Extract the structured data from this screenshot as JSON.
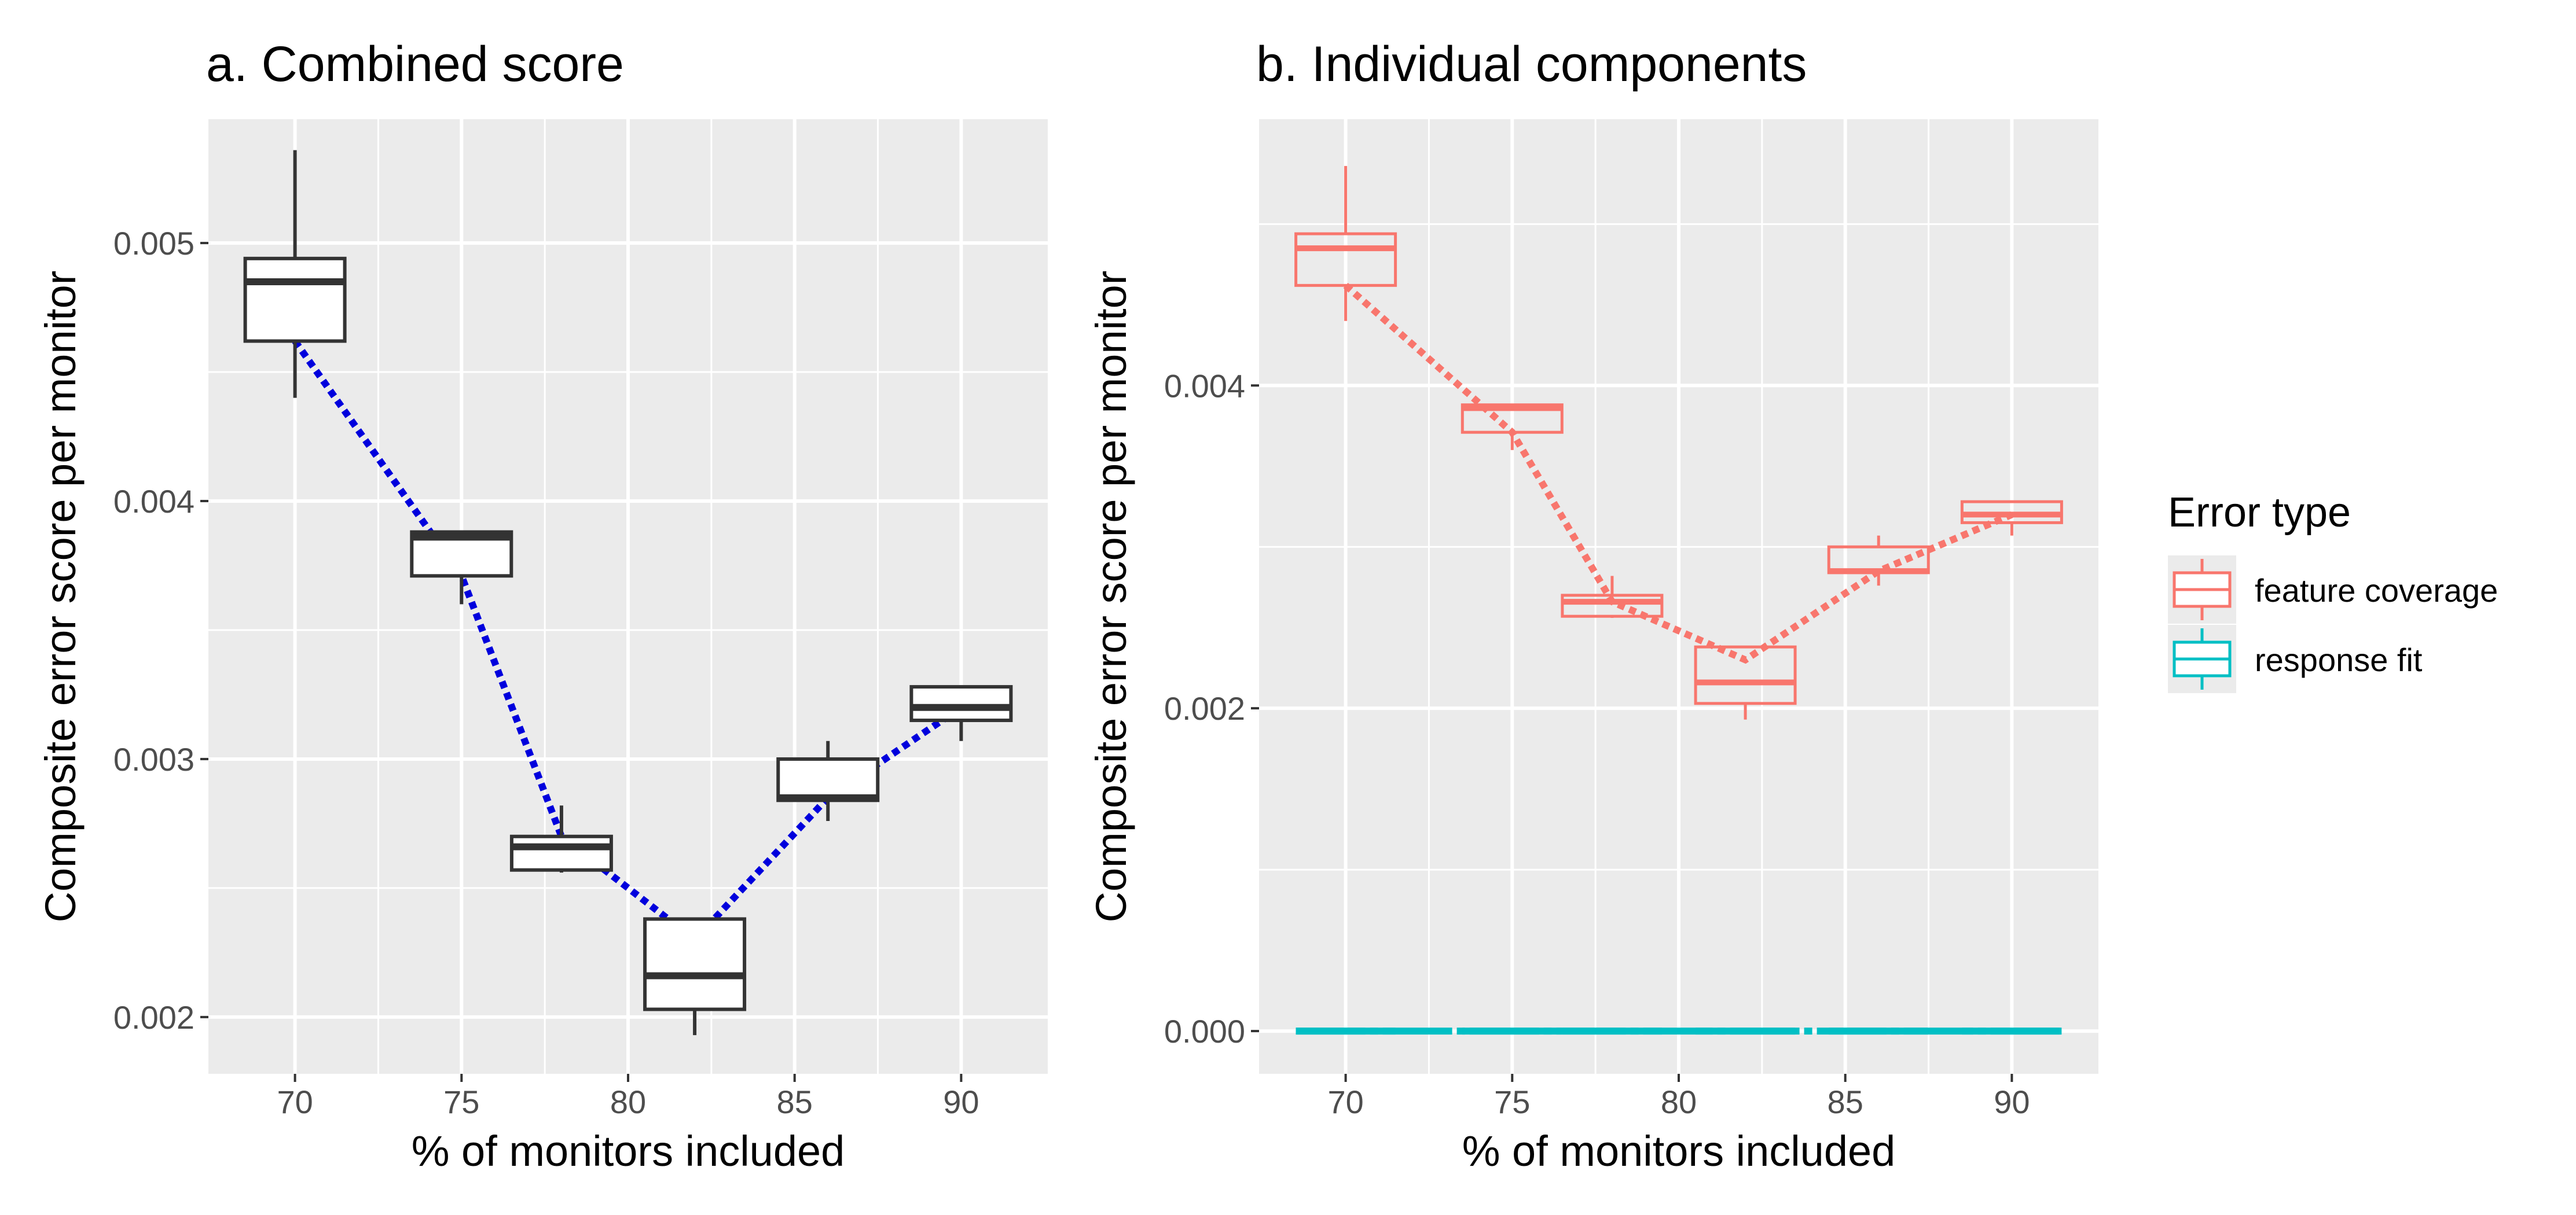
{
  "chart_data": [
    {
      "type": "box",
      "title": "a. Combined score",
      "xlabel": "% of monitors included",
      "ylabel": "Composite error score per monitor",
      "xlim": [
        67.4,
        92.6
      ],
      "ylim": [
        0.00178,
        0.00548
      ],
      "x_ticks": [
        70,
        75,
        80,
        85,
        90
      ],
      "y_ticks": [
        0.002,
        0.003,
        0.004,
        0.005
      ],
      "y_tick_labels": [
        "0.002",
        "0.003",
        "0.004",
        "0.005"
      ],
      "grid": true,
      "box_color": "#333333",
      "box_fill": "#ffffff",
      "trend_color": "#0000dd",
      "boxes": [
        {
          "x": 70,
          "whisker_low": 0.0044,
          "q1": 0.00462,
          "median": 0.00485,
          "q3": 0.00494,
          "whisker_high": 0.00536
        },
        {
          "x": 75,
          "whisker_low": 0.0036,
          "q1": 0.00371,
          "median": 0.00386,
          "q3": 0.00388,
          "whisker_high": 0.00388
        },
        {
          "x": 78,
          "whisker_low": 0.00256,
          "q1": 0.00257,
          "median": 0.00266,
          "q3": 0.0027,
          "whisker_high": 0.00282
        },
        {
          "x": 82,
          "whisker_low": 0.00193,
          "q1": 0.00203,
          "median": 0.00216,
          "q3": 0.00238,
          "whisker_high": 0.00238
        },
        {
          "x": 86,
          "whisker_low": 0.00276,
          "q1": 0.00284,
          "median": 0.00285,
          "q3": 0.003,
          "whisker_high": 0.00307
        },
        {
          "x": 90,
          "whisker_low": 0.00307,
          "q1": 0.00315,
          "median": 0.0032,
          "q3": 0.00328,
          "whisker_high": 0.00328
        }
      ],
      "trend": {
        "x": [
          70,
          75,
          78,
          82,
          86,
          90
        ],
        "y": [
          0.00462,
          0.00371,
          0.0027,
          0.0023,
          0.00285,
          0.0032
        ]
      }
    },
    {
      "type": "box",
      "title": "b. Individual components",
      "xlabel": "% of monitors included",
      "ylabel": "Composite error score per monitor",
      "xlim": [
        67.4,
        92.6
      ],
      "ylim": [
        -0.000265,
        0.00565
      ],
      "x_ticks": [
        70,
        75,
        80,
        85,
        90
      ],
      "y_ticks": [
        0.0,
        0.002,
        0.004
      ],
      "y_tick_labels": [
        "0.000",
        "0.002",
        "0.004"
      ],
      "grid": true,
      "legend_position": "right",
      "legend": {
        "title": "Error type",
        "entries": [
          {
            "label": "feature coverage",
            "color": "#f8766d"
          },
          {
            "label": "response fit",
            "color": "#00bfc4"
          }
        ]
      },
      "series": [
        {
          "name": "feature coverage",
          "color": "#f8766d",
          "boxes": [
            {
              "x": 70,
              "whisker_low": 0.0044,
              "q1": 0.00462,
              "median": 0.00485,
              "q3": 0.00494,
              "whisker_high": 0.00536
            },
            {
              "x": 75,
              "whisker_low": 0.0036,
              "q1": 0.00371,
              "median": 0.00386,
              "q3": 0.00388,
              "whisker_high": 0.00388
            },
            {
              "x": 78,
              "whisker_low": 0.00256,
              "q1": 0.00257,
              "median": 0.00266,
              "q3": 0.0027,
              "whisker_high": 0.00282
            },
            {
              "x": 82,
              "whisker_low": 0.00193,
              "q1": 0.00203,
              "median": 0.00216,
              "q3": 0.00238,
              "whisker_high": 0.00238
            },
            {
              "x": 86,
              "whisker_low": 0.00276,
              "q1": 0.00284,
              "median": 0.00285,
              "q3": 0.003,
              "whisker_high": 0.00307
            },
            {
              "x": 90,
              "whisker_low": 0.00307,
              "q1": 0.00315,
              "median": 0.0032,
              "q3": 0.00328,
              "whisker_high": 0.00328
            }
          ],
          "trend": {
            "x": [
              70,
              75,
              78,
              82,
              86,
              90
            ],
            "y": [
              0.00462,
              0.00371,
              0.00266,
              0.0023,
              0.00285,
              0.0032
            ]
          }
        },
        {
          "name": "response fit",
          "color": "#00bfc4",
          "boxes": [
            {
              "x": 70,
              "whisker_low": 0.0,
              "q1": 0.0,
              "median": 0.0,
              "q3": 0.0,
              "whisker_high": 0.0
            },
            {
              "x": 75,
              "whisker_low": 0.0,
              "q1": 0.0,
              "median": 0.0,
              "q3": 0.0,
              "whisker_high": 0.0
            },
            {
              "x": 78,
              "whisker_low": 0.0,
              "q1": 0.0,
              "median": 0.0,
              "q3": 0.0,
              "whisker_high": 0.0
            },
            {
              "x": 82,
              "whisker_low": 0.0,
              "q1": 0.0,
              "median": 0.0,
              "q3": 0.0,
              "whisker_high": 0.0
            },
            {
              "x": 86,
              "whisker_low": 0.0,
              "q1": 0.0,
              "median": 0.0,
              "q3": 0.0,
              "whisker_high": 0.0
            },
            {
              "x": 90,
              "whisker_low": 0.0,
              "q1": 0.0,
              "median": 0.0,
              "q3": 0.0,
              "whisker_high": 0.0
            }
          ],
          "trend": {
            "x": [
              70,
              75,
              78,
              82,
              86,
              90
            ],
            "y": [
              0.0,
              0.0,
              0.0,
              0.0,
              0.0,
              0.0
            ]
          }
        }
      ]
    }
  ]
}
